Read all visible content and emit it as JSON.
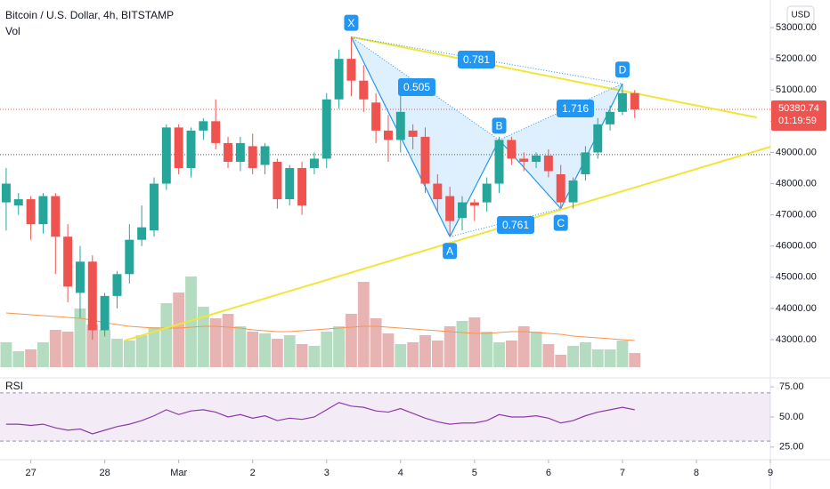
{
  "header": {
    "title": "Bitcoin / U.S. Dollar, 4h, BITSTAMP",
    "vol_label": "Vol",
    "rsi_label": "RSI",
    "currency": "USD"
  },
  "chart_data": {
    "type": "candlestick",
    "open": [
      47400,
      47300,
      47500,
      46700,
      47600,
      46300,
      44500,
      45500,
      43300,
      44400,
      45100,
      46200,
      46500,
      48000,
      49800,
      48500,
      49700,
      50000,
      49300,
      48700,
      49200,
      48600,
      48700,
      47500,
      48500,
      48500,
      48800,
      50700,
      52000,
      51300,
      50600,
      49700,
      49400,
      49700,
      49500,
      48000,
      47600,
      46900,
      47400,
      47400,
      48000,
      49400,
      48800,
      48700,
      48900,
      48300,
      47400,
      48300,
      49000,
      49900,
      50300,
      50900
    ],
    "high": [
      48500,
      47700,
      47600,
      47700,
      47700,
      46700,
      46000,
      45700,
      44500,
      45200,
      46700,
      47300,
      48200,
      49900,
      49900,
      49800,
      50100,
      50700,
      49500,
      49500,
      49600,
      49300,
      48800,
      48600,
      48700,
      49000,
      50900,
      52300,
      52700,
      51800,
      50900,
      50200,
      51000,
      49900,
      49800,
      48300,
      47900,
      47600,
      47500,
      48200,
      49500,
      49500,
      49000,
      49000,
      49100,
      48600,
      48200,
      49200,
      50100,
      50500,
      51200,
      51000
    ],
    "low": [
      46500,
      47000,
      46200,
      46400,
      45100,
      44200,
      43700,
      43000,
      43100,
      44000,
      44800,
      46000,
      46300,
      47800,
      48300,
      48200,
      49400,
      49100,
      48500,
      48400,
      48300,
      48300,
      47200,
      47300,
      47000,
      48300,
      48500,
      50400,
      50800,
      50300,
      49300,
      48700,
      49000,
      49100,
      47700,
      47100,
      46300,
      46500,
      46800,
      47100,
      47700,
      48600,
      48400,
      48500,
      48200,
      47200,
      47200,
      48100,
      48800,
      49700,
      50200,
      50100
    ],
    "close": [
      48000,
      47500,
      46700,
      47600,
      46300,
      44700,
      45500,
      43300,
      44400,
      45100,
      46200,
      46600,
      48000,
      49800,
      48500,
      49700,
      50000,
      49300,
      48700,
      49300,
      48500,
      49200,
      47500,
      48500,
      47300,
      48800,
      50700,
      52000,
      51300,
      50700,
      49700,
      49400,
      50300,
      49500,
      48000,
      47500,
      46800,
      47400,
      47300,
      48000,
      49400,
      48800,
      48700,
      48900,
      48400,
      47400,
      48100,
      49000,
      49900,
      50300,
      50900,
      50380.74
    ],
    "colors": {
      "up": "#26a69a",
      "down": "#ef5350"
    },
    "ylim": [
      41775,
      53885
    ],
    "yticks": [
      {
        "value": 43000,
        "label": "43000.00"
      },
      {
        "value": 44000,
        "label": "44000.00"
      },
      {
        "value": 45000,
        "label": "45000.00"
      },
      {
        "value": 46000,
        "label": "46000.00"
      },
      {
        "value": 47000,
        "label": "47000.00"
      },
      {
        "value": 48000,
        "label": "48000.00"
      },
      {
        "value": 49000,
        "label": "49000.00"
      },
      {
        "value": 50000,
        "label": "50000.00"
      },
      {
        "value": 51000,
        "label": "51000.00"
      },
      {
        "value": 52000,
        "label": "52000.00"
      },
      {
        "value": 53000,
        "label": "53000.00"
      }
    ],
    "xlim": [
      -0.5,
      62
    ],
    "xticks": [
      {
        "value": 2,
        "label": "27"
      },
      {
        "value": 8,
        "label": "28"
      },
      {
        "value": 14,
        "label": "Mar"
      },
      {
        "value": 20,
        "label": "2"
      },
      {
        "value": 26,
        "label": "3"
      },
      {
        "value": 32,
        "label": "4"
      },
      {
        "value": 38,
        "label": "5"
      },
      {
        "value": 44,
        "label": "6"
      },
      {
        "value": 50,
        "label": "7"
      },
      {
        "value": 56,
        "label": "8"
      },
      {
        "value": 62,
        "label": "9"
      }
    ],
    "countdown": "01:19:59",
    "hlines": [
      {
        "y": 48930,
        "color": "#555555"
      }
    ],
    "volume": {
      "values": [
        28,
        18,
        20,
        28,
        42,
        40,
        66,
        48,
        42,
        32,
        30,
        36,
        45,
        72,
        84,
        102,
        68,
        55,
        60,
        46,
        40,
        38,
        32,
        36,
        26,
        24,
        40,
        46,
        60,
        96,
        55,
        38,
        26,
        28,
        36,
        30,
        46,
        52,
        56,
        40,
        28,
        30,
        46,
        40,
        26,
        14,
        24,
        28,
        20,
        20,
        30,
        16
      ],
      "colors": {
        "up": "#b3dcc0",
        "down": "#e8b4b3"
      }
    },
    "volume_ma": {
      "values": [
        61,
        60,
        59,
        58,
        57,
        56,
        55,
        53,
        50,
        48,
        46,
        45,
        44,
        44,
        44,
        45,
        46,
        46,
        45,
        44,
        42,
        41,
        40,
        40,
        41,
        42,
        43,
        44,
        45,
        46,
        46,
        45,
        44,
        43,
        42,
        41,
        40,
        39,
        38,
        38,
        39,
        40,
        40,
        39,
        38,
        37,
        35,
        34,
        33,
        32,
        31,
        30
      ],
      "color": "#f7954d"
    },
    "rsi": {
      "values": [
        44,
        44,
        43,
        44,
        41,
        39,
        40,
        36,
        39,
        42,
        44,
        47,
        51,
        56,
        52,
        55,
        56,
        54,
        50,
        52,
        49,
        51,
        47,
        49,
        48,
        50,
        56,
        62,
        59,
        58,
        55,
        54,
        57,
        53,
        49,
        46,
        44,
        45,
        45,
        47,
        52,
        50,
        50,
        51,
        49,
        45,
        47,
        51,
        54,
        56,
        58,
        56
      ],
      "ylim": [
        17.5,
        81
      ],
      "yticks": [
        {
          "value": 25,
          "label": "25.00"
        },
        {
          "value": 50,
          "label": "50.00"
        },
        {
          "value": 75,
          "label": "75.00"
        }
      ],
      "band": [
        30,
        70
      ],
      "color": "#8e3aa8"
    },
    "pattern": {
      "points": [
        {
          "label": "X",
          "x": 28,
          "y": 52700
        },
        {
          "label": "A",
          "x": 36,
          "y": 46300
        },
        {
          "label": "B",
          "x": 40,
          "y": 49400
        },
        {
          "label": "C",
          "x": 45,
          "y": 47200
        },
        {
          "label": "D",
          "x": 50,
          "y": 51200
        }
      ],
      "ratios": [
        0.505,
        0.781,
        1.716,
        0.761
      ],
      "color": "#2196f3"
    },
    "trendlines": {
      "color": "#f2e53a",
      "lines": [
        {
          "x": [
            28,
            60.9
          ],
          "y": [
            52700,
            50120
          ]
        },
        {
          "x": [
            9.6,
            62
          ],
          "y": [
            42970,
            49180
          ]
        }
      ]
    }
  }
}
